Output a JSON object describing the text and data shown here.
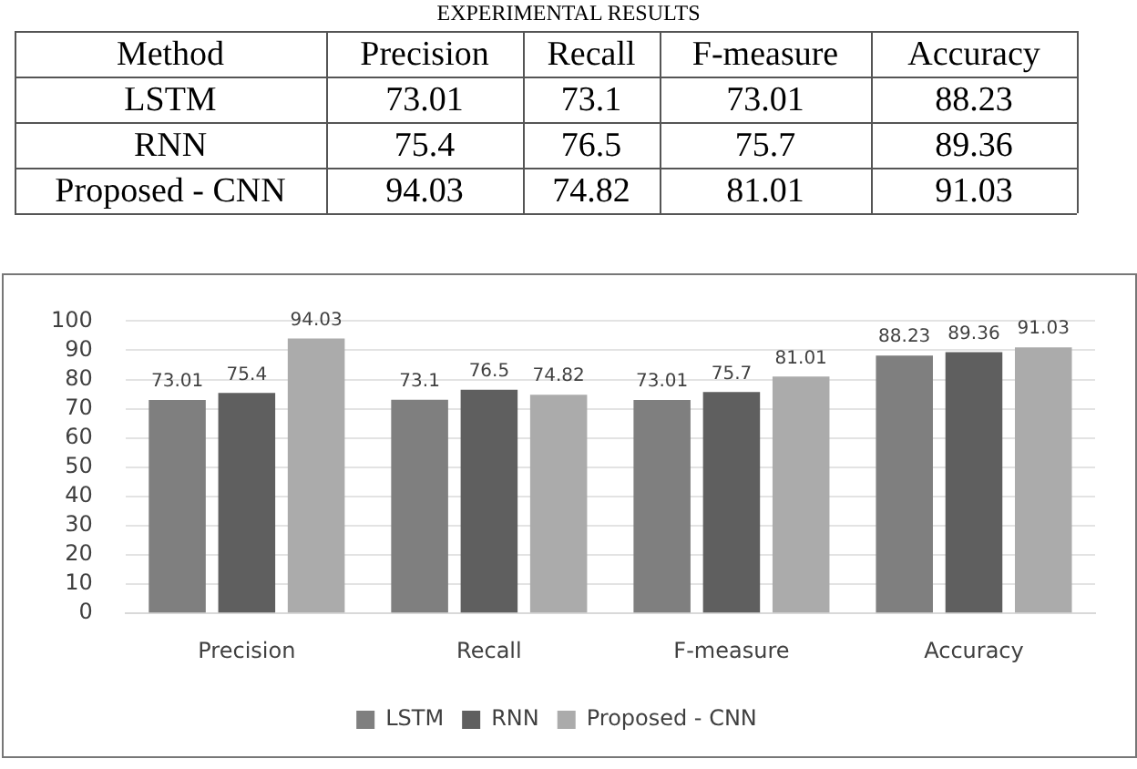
{
  "chart_data": [
    {
      "type": "heatmap",
      "title": "EXPERIMENTAL RESULTS",
      "ylabel": "Method",
      "categories": [
        "Precision",
        "Recall",
        "F-measure",
        "Accuracy"
      ],
      "y_categories": [
        "LSTM",
        "RNN",
        "Proposed - CNN"
      ],
      "cells": [
        [
          73.01,
          73.1,
          73.01,
          88.23
        ],
        [
          75.4,
          76.5,
          75.7,
          89.36
        ],
        [
          94.03,
          74.82,
          81.01,
          91.03
        ]
      ],
      "cell_labels": [
        [
          "73.01",
          "73.1",
          "73.01",
          "88.23"
        ],
        [
          "75.4",
          "76.5",
          "75.7",
          "89.36"
        ],
        [
          "94.03",
          "74.82",
          "81.01",
          "91.03"
        ]
      ]
    },
    {
      "type": "bar",
      "categories": [
        "Precision",
        "Recall",
        "F-measure",
        "Accuracy"
      ],
      "series": [
        {
          "name": "LSTM",
          "color": "#7f7f7f",
          "values": [
            73.01,
            73.1,
            73.01,
            88.23
          ]
        },
        {
          "name": "RNN",
          "color": "#5f5f5f",
          "values": [
            75.4,
            76.5,
            75.7,
            89.36
          ]
        },
        {
          "name": "Proposed - CNN",
          "color": "#ababab",
          "values": [
            94.03,
            74.82,
            81.01,
            91.03
          ]
        }
      ],
      "ylim": [
        0,
        100
      ],
      "yticks": [
        0,
        10,
        20,
        30,
        40,
        50,
        60,
        70,
        80,
        90,
        100
      ],
      "grid": "y",
      "legend": "bottom",
      "data_labels": true
    }
  ]
}
